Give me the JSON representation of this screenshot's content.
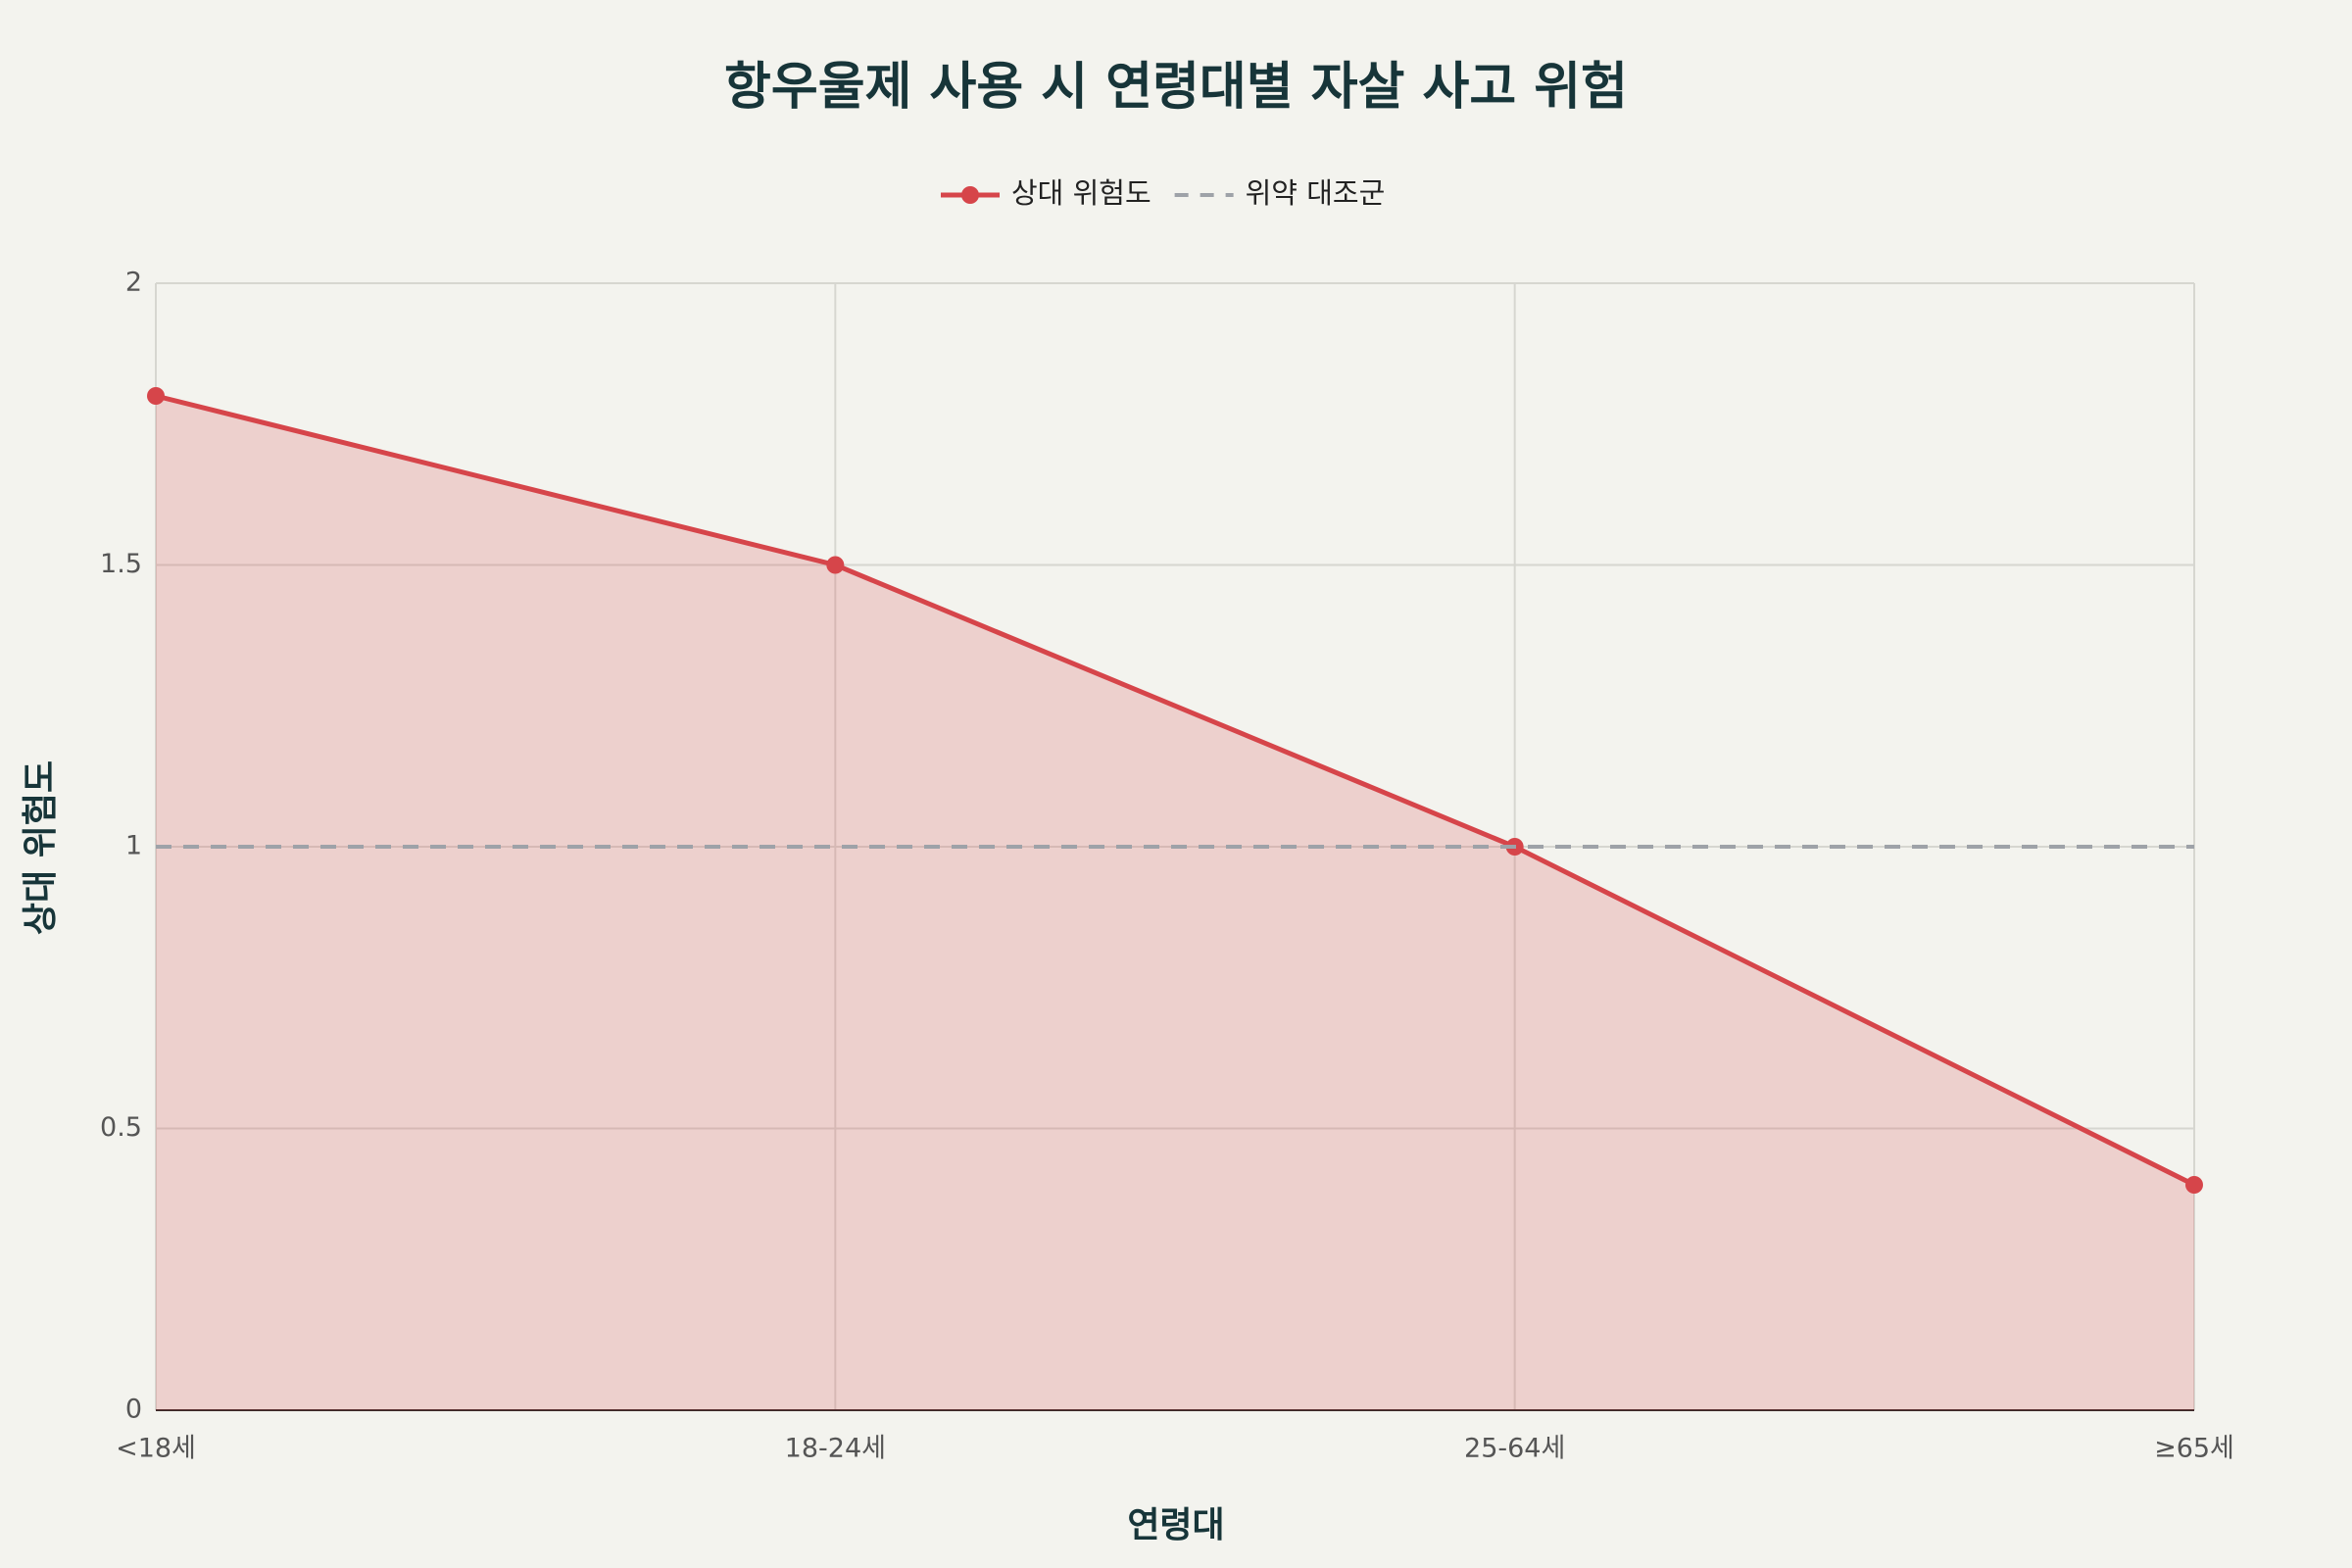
{
  "chart_data": {
    "type": "line",
    "title": "항우울제 사용 시 연령대별 자살 사고 위험",
    "x_label": "연령대",
    "y_label": "상대 위험도",
    "categories": [
      "<18세",
      "18-24세",
      "25-64세",
      "≥65세"
    ],
    "series": [
      {
        "name": "상대 위험도",
        "color": "#d6454a",
        "values": [
          1.8,
          1.5,
          1.0,
          0.4
        ],
        "fill": "tozeroy",
        "markers": true
      },
      {
        "name": "위약 대조군",
        "color": "#9ea2a8",
        "values": [
          1,
          1,
          1,
          1
        ],
        "dash": "dash"
      }
    ],
    "ylim": [
      0,
      2
    ],
    "yticks": [
      0,
      0.5,
      1,
      1.5,
      2
    ],
    "grid": true,
    "legend": "top"
  }
}
